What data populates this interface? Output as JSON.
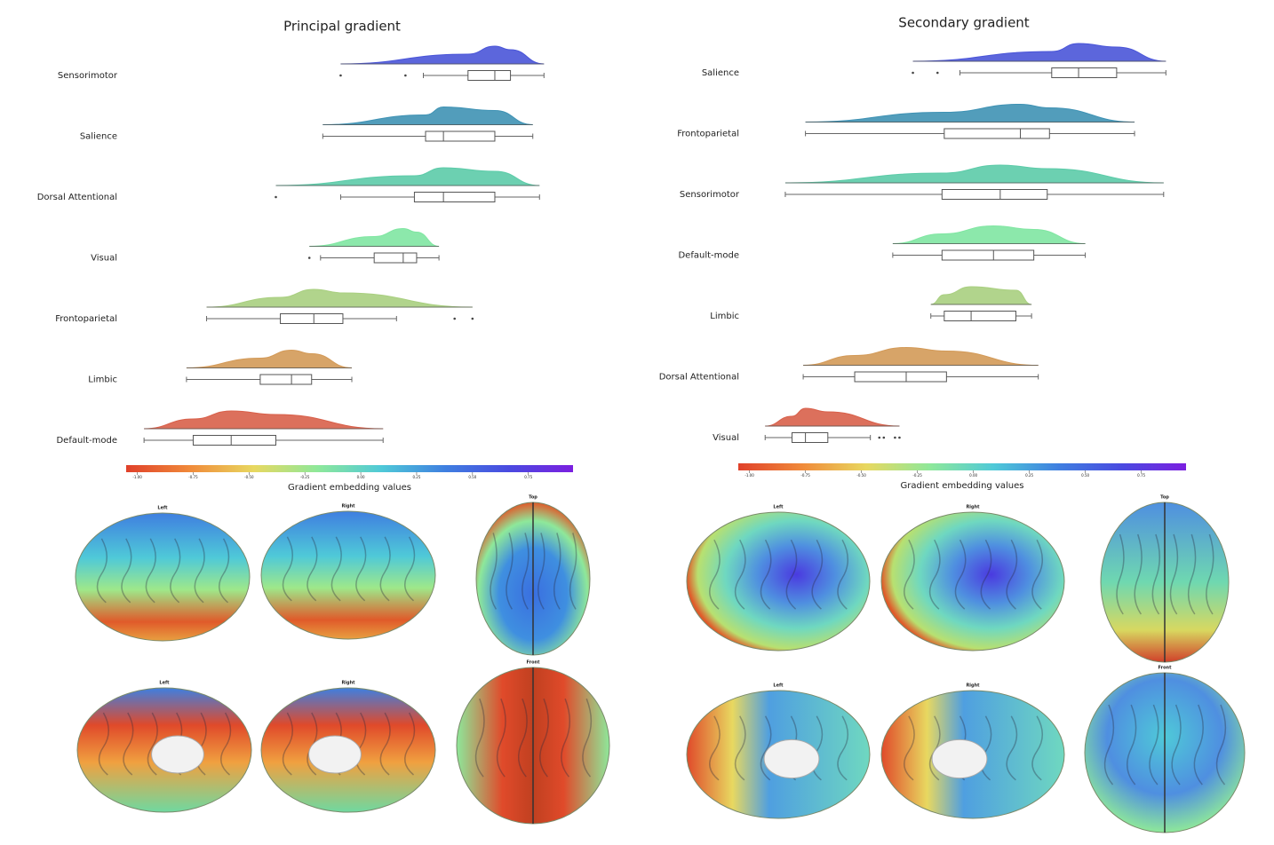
{
  "chart_data": [
    {
      "type": "box",
      "title": "Principal gradient",
      "xlabel": "Gradient embedding values",
      "categories": [
        "Sensorimotor",
        "Salience",
        "Dorsal Attentional",
        "Visual",
        "Frontoparietal",
        "Limbic",
        "Default-mode"
      ],
      "colors": [
        "#4a55d8",
        "#3f92b4",
        "#5ccba8",
        "#80e6a2",
        "#a9cf80",
        "#d39a58",
        "#d8604a"
      ],
      "boxes": [
        {
          "min": 0.28,
          "q1": 0.48,
          "median": 0.6,
          "q3": 0.67,
          "max": 0.82,
          "outliers": [
            -0.09,
            0.2
          ]
        },
        {
          "min": -0.17,
          "q1": 0.29,
          "median": 0.37,
          "q3": 0.6,
          "max": 0.77,
          "outliers": []
        },
        {
          "min": -0.09,
          "q1": 0.24,
          "median": 0.37,
          "q3": 0.6,
          "max": 0.8,
          "outliers": [
            -0.38
          ]
        },
        {
          "min": -0.18,
          "q1": 0.06,
          "median": 0.19,
          "q3": 0.25,
          "max": 0.35,
          "outliers": [
            -0.23
          ]
        },
        {
          "min": -0.69,
          "q1": -0.36,
          "median": -0.21,
          "q3": -0.08,
          "max": 0.16,
          "outliers": [
            0.42,
            0.5
          ]
        },
        {
          "min": -0.78,
          "q1": -0.45,
          "median": -0.31,
          "q3": -0.22,
          "max": -0.04,
          "outliers": []
        },
        {
          "min": -0.97,
          "q1": -0.75,
          "median": -0.58,
          "q3": -0.38,
          "max": 0.1,
          "outliers": []
        }
      ],
      "xlim": [
        -1.05,
        0.95
      ],
      "xticks": [
        {
          "value": -1,
          "label": "-1.00"
        },
        {
          "value": -0.75,
          "label": "-0.75"
        },
        {
          "value": -0.5,
          "label": "-0.50"
        },
        {
          "value": -0.25,
          "label": "-0.25"
        },
        {
          "value": 0,
          "label": "0.00"
        },
        {
          "value": 0.25,
          "label": "0.25"
        },
        {
          "value": 0.5,
          "label": "0.50"
        },
        {
          "value": 0.75,
          "label": "0.75"
        }
      ],
      "colormap": [
        "#e0402a",
        "#f08a3a",
        "#e8d860",
        "#8ee89a",
        "#4fc9d8",
        "#3f7fe0",
        "#4a4ae0",
        "#7b1fe0"
      ],
      "brain_views": [
        "Left",
        "Right",
        "Top",
        "Left",
        "Right",
        "Front"
      ]
    },
    {
      "type": "box",
      "title": "Secondary gradient",
      "xlabel": "Gradient embedding values",
      "categories": [
        "Salience",
        "Frontoparietal",
        "Sensorimotor",
        "Default-mode",
        "Limbic",
        "Dorsal Attentional",
        "Visual"
      ],
      "colors": [
        "#4a55d8",
        "#3f92b4",
        "#5ccba8",
        "#80e6a2",
        "#a9cf80",
        "#d39a58",
        "#d8604a"
      ],
      "boxes": [
        {
          "min": -0.06,
          "q1": 0.35,
          "median": 0.47,
          "q3": 0.64,
          "max": 0.86,
          "outliers": [
            -0.27,
            -0.16
          ]
        },
        {
          "min": -0.75,
          "q1": -0.13,
          "median": 0.21,
          "q3": 0.34,
          "max": 0.72,
          "outliers": []
        },
        {
          "min": -0.84,
          "q1": -0.14,
          "median": 0.12,
          "q3": 0.33,
          "max": 0.85,
          "outliers": []
        },
        {
          "min": -0.36,
          "q1": -0.14,
          "median": 0.09,
          "q3": 0.27,
          "max": 0.5,
          "outliers": []
        },
        {
          "min": -0.19,
          "q1": -0.13,
          "median": -0.01,
          "q3": 0.19,
          "max": 0.26,
          "outliers": []
        },
        {
          "min": -0.76,
          "q1": -0.53,
          "median": -0.3,
          "q3": -0.12,
          "max": 0.29,
          "outliers": []
        },
        {
          "min": -0.93,
          "q1": -0.81,
          "median": -0.75,
          "q3": -0.65,
          "max": -0.46,
          "outliers": [
            -0.42,
            -0.4,
            -0.35,
            -0.33
          ]
        }
      ],
      "xlim": [
        -1.05,
        0.95
      ],
      "xticks": [
        {
          "value": -1,
          "label": "-1.00"
        },
        {
          "value": -0.75,
          "label": "-0.75"
        },
        {
          "value": -0.5,
          "label": "-0.50"
        },
        {
          "value": -0.25,
          "label": "-0.25"
        },
        {
          "value": 0,
          "label": "0.00"
        },
        {
          "value": 0.25,
          "label": "0.25"
        },
        {
          "value": 0.5,
          "label": "0.50"
        },
        {
          "value": 0.75,
          "label": "0.75"
        }
      ],
      "colormap": [
        "#e0402a",
        "#f08a3a",
        "#e8d860",
        "#8ee89a",
        "#4fc9d8",
        "#3f7fe0",
        "#4a4ae0",
        "#7b1fe0"
      ],
      "brain_views": [
        "Left",
        "Right",
        "Top",
        "Left",
        "Right",
        "Front"
      ]
    }
  ]
}
